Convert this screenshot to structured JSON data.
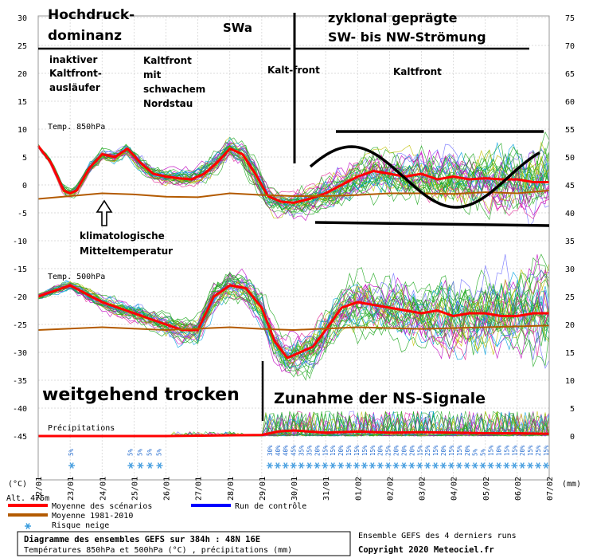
{
  "chart_data": {
    "type": "line",
    "subtitle": "Températures 850hPa et 500hPa (°C) , précipitations (mm)",
    "title": "Diagramme des ensembles GEFS sur 384h : 48N 16E",
    "info_right_1": "Ensemble GEFS des 4 derniers runs",
    "info_right_2": "Copyright 2020 Meteociel.fr",
    "unit_left": "(°C)",
    "unit_right": "(mm)",
    "altitude": "Alt. 475m",
    "panel_850_label": "Temp. 850hPa",
    "panel_500_label": "Temp. 500hPa",
    "panel_precip_label": "Précipitations",
    "y_left_ticks": [
      30,
      25,
      20,
      15,
      10,
      5,
      0,
      -5,
      -10,
      -15,
      -20,
      -25,
      -30,
      -35,
      -40,
      -45
    ],
    "y_right_ticks": [
      75,
      70,
      65,
      60,
      55,
      50,
      45,
      40,
      35,
      30,
      25,
      20,
      15,
      10,
      5,
      0
    ],
    "x_labels": [
      "22/01",
      "23/01",
      "24/01",
      "25/01",
      "26/01",
      "27/01",
      "28/01",
      "29/01",
      "30/01",
      "31/01",
      "01/02",
      "02/02",
      "03/02",
      "04/02",
      "05/02",
      "06/02",
      "07/02"
    ],
    "ylim": [
      -45,
      30
    ],
    "legend": [
      {
        "label": "Moyenne des scénarios",
        "color": "#ff0000",
        "kind": "line"
      },
      {
        "label": "Moyenne 1981-2010",
        "color": "#b35a00",
        "kind": "line"
      },
      {
        "label": "Risque neige",
        "color": "#3399dd",
        "kind": "snow"
      },
      {
        "label": "Run de contrôle",
        "color": "#0000ff",
        "kind": "line"
      }
    ],
    "snow_risk": {
      "early": [
        {
          "day": 1.1,
          "value": "5%"
        },
        {
          "day": 2.95,
          "value": "5%"
        },
        {
          "day": 3.25,
          "value": "5%"
        },
        {
          "day": 3.55,
          "value": "5%"
        },
        {
          "day": 3.85,
          "value": "5%"
        }
      ],
      "late_start": 7.25,
      "late_values": [
        "30%",
        "40%",
        "40%",
        "45%",
        "35%",
        "35%",
        "20%",
        "15%",
        "15%",
        "20%",
        "15%",
        "15%",
        "15%",
        "15%",
        "20%",
        "25%",
        "20%",
        "20%",
        "20%",
        "15%",
        "25%",
        "15%",
        "20%",
        "15%",
        "15%",
        "20%",
        "5%",
        "5%",
        "15%",
        "10%",
        "15%",
        "15%",
        "20%",
        "15%",
        "25%",
        "15%"
      ]
    },
    "series": [
      {
        "name": "Moyenne des scénarios",
        "level": "850hPa",
        "x": [
          0,
          0.4,
          0.8,
          1.0,
          1.2,
          1.6,
          2.0,
          2.4,
          2.8,
          3.2,
          3.6,
          4.0,
          4.4,
          4.8,
          5.2,
          5.6,
          6.0,
          6.4,
          6.8,
          7.2,
          7.6,
          8.0,
          8.5,
          9.0,
          9.5,
          10.0,
          10.5,
          11.0,
          11.5,
          12.0,
          12.5,
          13.0,
          13.5,
          14.0,
          14.5,
          15.0,
          15.5,
          16.0
        ],
        "values": [
          7,
          4,
          -1,
          -1.5,
          -1,
          3,
          5.5,
          5,
          6.5,
          4,
          2,
          1.5,
          1.2,
          1,
          2,
          4,
          6.5,
          5.5,
          2,
          -2,
          -3,
          -3.2,
          -2.5,
          -1.5,
          0,
          1.5,
          2.5,
          2,
          1.5,
          2,
          1,
          1.5,
          1,
          1.2,
          1,
          1,
          0.5,
          0.5
        ]
      },
      {
        "name": "Moyenne 1981-2010",
        "level": "850hPa",
        "x": [
          0,
          1.0,
          2.0,
          3.0,
          4.0,
          5.0,
          6.0,
          7.0,
          8.0,
          9.0,
          10.0,
          11.0,
          12.0,
          13.0,
          14.0,
          15.0,
          16.0
        ],
        "values": [
          -2.5,
          -2,
          -1.5,
          -1.7,
          -2.1,
          -2.2,
          -1.5,
          -1.8,
          -2,
          -2,
          -1.8,
          -1.5,
          -1.5,
          -1.6,
          -1.3,
          -1.5,
          -1
        ]
      },
      {
        "name": "Moyenne des scénarios",
        "level": "500hPa",
        "x": [
          0,
          0.5,
          1.0,
          1.5,
          2.0,
          2.5,
          3.0,
          3.5,
          4.0,
          4.5,
          5.0,
          5.5,
          6.0,
          6.5,
          7.0,
          7.4,
          7.8,
          8.2,
          8.6,
          9.0,
          9.5,
          10.0,
          10.5,
          11.0,
          11.5,
          12.0,
          12.5,
          13.0,
          13.5,
          14.0,
          14.5,
          15.0,
          15.5,
          16.0
        ],
        "values": [
          -20,
          -19,
          -18,
          -19.5,
          -21,
          -22,
          -23,
          -24,
          -25,
          -26,
          -26,
          -20,
          -18,
          -18.5,
          -22,
          -28,
          -31,
          -30,
          -29,
          -26,
          -22,
          -21,
          -21.5,
          -22,
          -22.5,
          -23,
          -22.5,
          -23.5,
          -23,
          -23,
          -23.5,
          -23.5,
          -23,
          -23
        ]
      },
      {
        "name": "Moyenne 1981-2010",
        "level": "500hPa",
        "x": [
          0,
          2.0,
          4.0,
          6.0,
          7.0,
          8.0,
          10.0,
          12.0,
          14.0,
          16.0
        ],
        "values": [
          -26,
          -25.5,
          -26,
          -25.5,
          -25.8,
          -26,
          -25.5,
          -25.8,
          -25.5,
          -25.2
        ]
      },
      {
        "name": "Moyenne des scénarios",
        "level": "precip",
        "x": [
          0,
          4.0,
          7.0,
          7.5,
          8.0,
          9.0,
          10.0,
          11.0,
          12.0,
          13.0,
          14.0,
          15.0,
          16.0
        ],
        "values": [
          0,
          0,
          0.2,
          0.8,
          1.0,
          0.6,
          0.8,
          0.6,
          0.7,
          0.6,
          0.5,
          0.5,
          0.4
        ]
      }
    ],
    "annotations": {
      "hochdruck_1": "Hochdruck-",
      "hochdruck_2": "dominanz",
      "swa": "SWa",
      "zyklonal_1": "zyklonal geprägte",
      "zyklonal_2": "SW- bis NW-Strömung",
      "inaktiv_1": "inaktiver",
      "inaktiv_2": "Kaltfront-",
      "inaktiv_3": "ausläufer",
      "kf_nord_1": "Kaltfront",
      "kf_nord_2": "mit",
      "kf_nord_3": "schwachem",
      "kf_nord_4": "Nordstau",
      "kaltfront_a": "Kalt-front",
      "kaltfront_b": "Kaltfront",
      "klima_1": "klimatologische",
      "klima_2": "Mitteltemperatur",
      "trocken": "weitgehend trocken",
      "ns_signale": "Zunahme der NS-Signale"
    }
  }
}
